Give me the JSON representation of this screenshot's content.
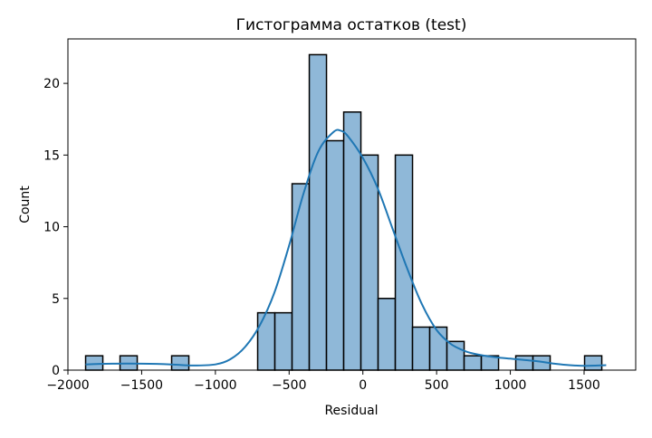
{
  "chart_data": {
    "type": "bar",
    "title": "Гистограмма остатков (test)",
    "xlabel": "Residual",
    "ylabel": "Count",
    "xlim": [
      -2000,
      1850
    ],
    "ylim": [
      0,
      23.1
    ],
    "xticks": [
      -2000,
      -1500,
      -1000,
      -500,
      0,
      500,
      1000,
      1500
    ],
    "xtick_labels": [
      "−2000",
      "−1500",
      "−1000",
      "−500",
      "0",
      "500",
      "1000",
      "1500"
    ],
    "yticks": [
      0,
      5,
      10,
      15,
      20
    ],
    "ytick_labels": [
      "0",
      "5",
      "10",
      "15",
      "20"
    ],
    "bin_edges": [
      -1880,
      -1763.33,
      -1646.67,
      -1530,
      -1413.33,
      -1296.67,
      -1180,
      -1063.33,
      -946.67,
      -830,
      -713.33,
      -596.67,
      -480,
      -363.33,
      -246.67,
      -130,
      -13.33,
      103.33,
      220,
      336.67,
      453.33,
      570,
      686.67,
      803.33,
      920,
      1036.67,
      1153.33,
      1270,
      1386.67,
      1503.33,
      1620
    ],
    "counts": [
      1,
      0,
      1,
      0,
      0,
      1,
      0,
      0,
      0,
      0,
      4,
      4,
      13,
      22,
      16,
      18,
      15,
      5,
      15,
      3,
      3,
      2,
      1,
      1,
      0,
      1,
      1,
      0,
      0,
      1
    ],
    "kde": {
      "x": [
        -1880,
        -1700,
        -1500,
        -1300,
        -1150,
        -1000,
        -900,
        -800,
        -700,
        -600,
        -500,
        -400,
        -300,
        -200,
        -150,
        -100,
        0,
        100,
        200,
        300,
        400,
        500,
        600,
        700,
        800,
        900,
        1000,
        1100,
        1200,
        1300,
        1400,
        1500,
        1650
      ],
      "y": [
        0.4,
        0.45,
        0.45,
        0.4,
        0.32,
        0.4,
        0.75,
        1.6,
        3.1,
        5.4,
        8.7,
        12.4,
        15.3,
        16.6,
        16.7,
        16.3,
        14.8,
        12.7,
        9.9,
        7.1,
        4.6,
        2.8,
        1.8,
        1.3,
        1.05,
        0.9,
        0.8,
        0.7,
        0.6,
        0.45,
        0.35,
        0.3,
        0.35
      ]
    },
    "bar_color": "#8fb8d8",
    "bar_edge_color": "#000000",
    "line_color": "#1f77b4",
    "grid": false,
    "legend": false
  }
}
